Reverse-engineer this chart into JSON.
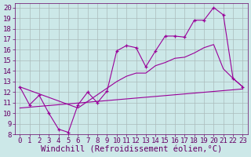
{
  "xlabel": "Windchill (Refroidissement éolien,°C)",
  "bg_color": "#cce8e8",
  "grid_color": "#aabbbb",
  "line_color": "#990099",
  "xlim": [
    -0.5,
    23.5
  ],
  "ylim": [
    8,
    20.4
  ],
  "xticks": [
    0,
    1,
    2,
    3,
    4,
    5,
    6,
    7,
    8,
    9,
    10,
    11,
    12,
    13,
    14,
    15,
    16,
    17,
    18,
    19,
    20,
    21,
    22,
    23
  ],
  "yticks": [
    8,
    9,
    10,
    11,
    12,
    13,
    14,
    15,
    16,
    17,
    18,
    19,
    20
  ],
  "line1_x": [
    0,
    1,
    2,
    3,
    4,
    5,
    6,
    7,
    8,
    9,
    10,
    11,
    12,
    13,
    14,
    15,
    16,
    17,
    18,
    19,
    20,
    21,
    22,
    23
  ],
  "line1_y": [
    12.5,
    10.8,
    11.7,
    10.0,
    8.5,
    8.2,
    10.8,
    12.0,
    11.0,
    12.1,
    15.9,
    16.4,
    16.2,
    14.4,
    15.9,
    17.3,
    17.3,
    17.2,
    18.8,
    18.8,
    20.0,
    19.3,
    13.3,
    12.5
  ],
  "line2_x": [
    0,
    6,
    10,
    11,
    12,
    13,
    14,
    15,
    16,
    17,
    18,
    19,
    20,
    21,
    22,
    23
  ],
  "line2_y": [
    12.5,
    10.5,
    13.0,
    13.5,
    13.8,
    13.8,
    14.5,
    14.8,
    15.2,
    15.3,
    15.7,
    16.2,
    16.5,
    14.2,
    13.3,
    12.5
  ],
  "line3_x": [
    0,
    23
  ],
  "line3_y": [
    10.5,
    12.3
  ],
  "font_color": "#660066",
  "tick_fontsize": 6.5,
  "label_fontsize": 7.5
}
